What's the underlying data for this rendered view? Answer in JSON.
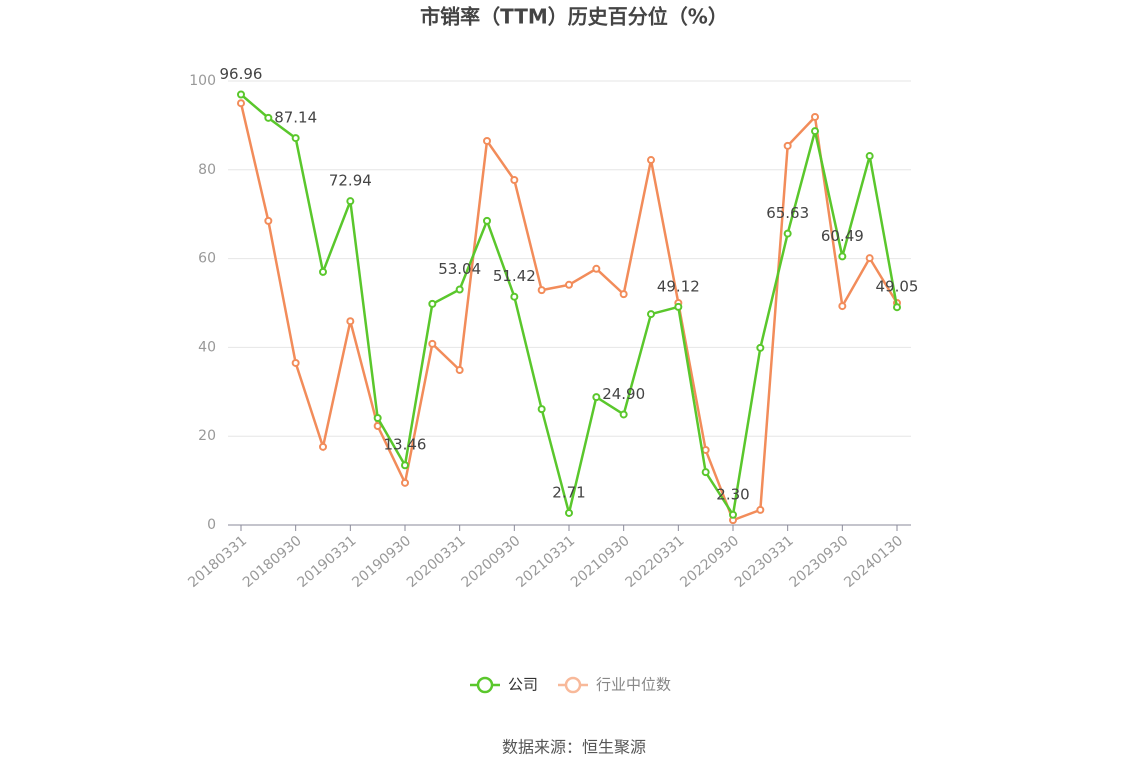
{
  "chart_data": {
    "type": "line",
    "title": "市销率（TTM）历史百分位（%）",
    "categories": [
      "20180331",
      null,
      "20180930",
      null,
      "20190331",
      null,
      "20190930",
      null,
      "20200331",
      null,
      "20200930",
      null,
      "20210331",
      null,
      "20210930",
      null,
      "20220331",
      null,
      "20220930",
      null,
      "20230331",
      null,
      "20230930",
      null,
      "20240130"
    ],
    "series": [
      {
        "name": "公司",
        "color": "#5ac72c",
        "values": [
          96.96,
          91.7,
          87.14,
          57.0,
          72.94,
          24.1,
          13.46,
          49.8,
          53.04,
          68.5,
          51.42,
          26.1,
          2.71,
          28.8,
          24.9,
          47.5,
          49.12,
          11.9,
          2.3,
          39.9,
          65.63,
          88.7,
          60.49,
          83.1,
          49.05
        ],
        "value_labels": [
          "96.96",
          null,
          "87.14",
          null,
          "72.94",
          null,
          "13.46",
          null,
          "53.04",
          null,
          "51.42",
          null,
          "2.71",
          null,
          "24.90",
          null,
          "49.12",
          null,
          "2.30",
          null,
          "65.63",
          null,
          "60.49",
          null,
          "49.05"
        ]
      },
      {
        "name": "行业中位数",
        "color": "#f28c5a",
        "values": [
          95.0,
          68.5,
          36.5,
          17.6,
          45.9,
          22.3,
          9.5,
          40.8,
          34.9,
          86.5,
          77.7,
          52.9,
          54.1,
          57.7,
          52.0,
          82.2,
          50.0,
          16.9,
          1.1,
          3.4,
          85.4,
          91.9,
          49.3,
          60.1,
          50.0
        ]
      }
    ],
    "ylim": [
      0,
      100
    ],
    "yticks": [
      0,
      20,
      40,
      60,
      80,
      100
    ],
    "grid": true,
    "source": "数据来源：恒生聚源"
  }
}
